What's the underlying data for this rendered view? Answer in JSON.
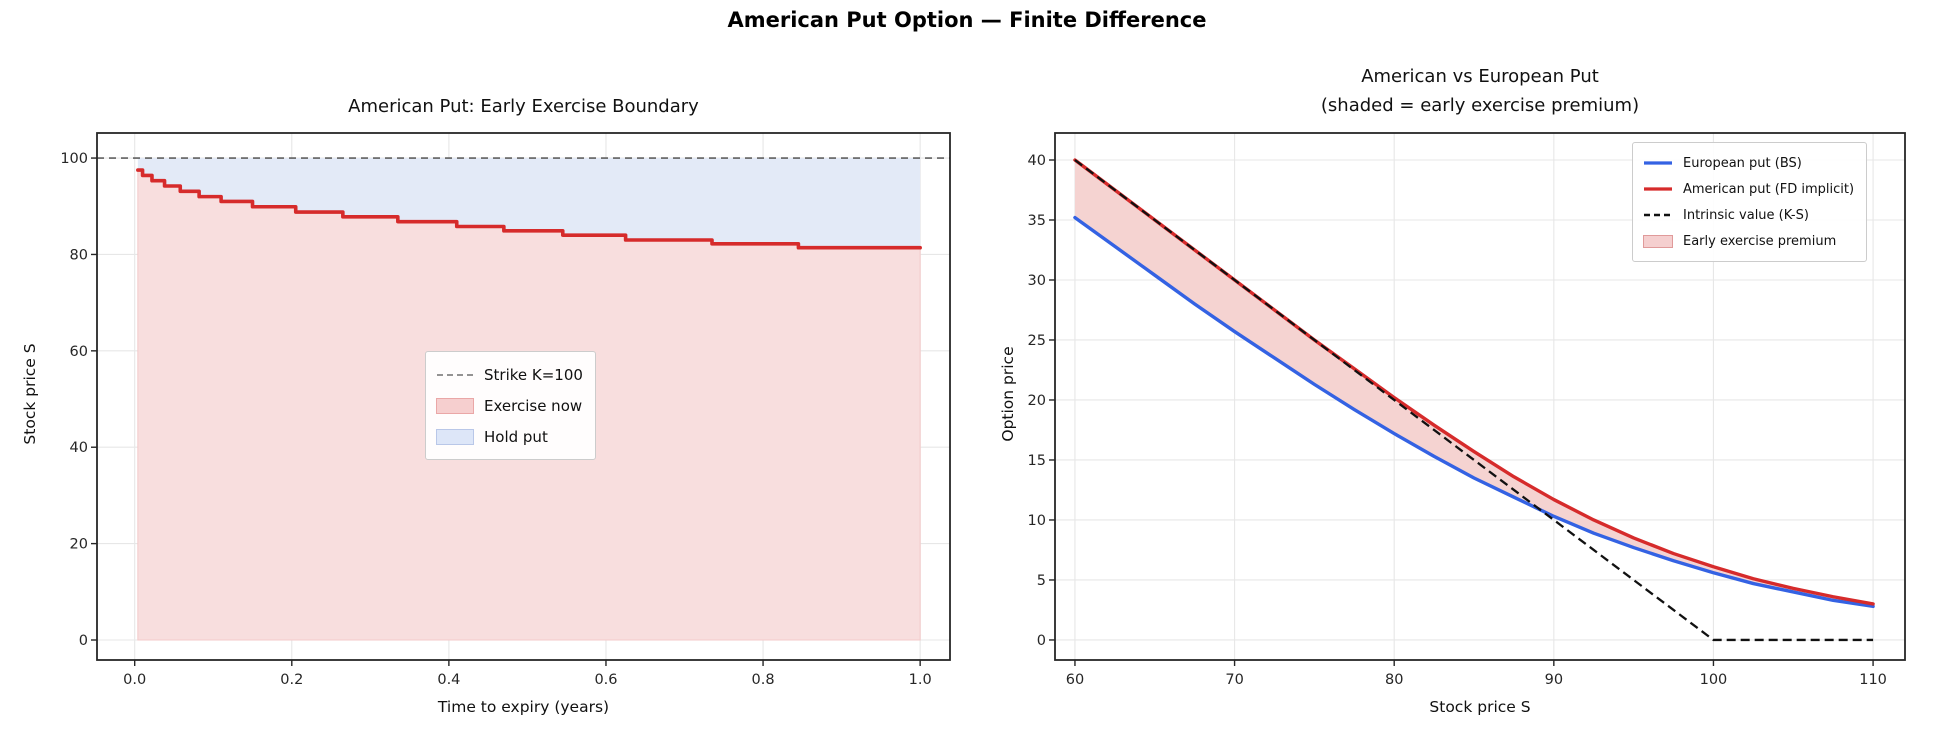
{
  "figure": {
    "suptitle": "American Put Option — Finite Difference"
  },
  "colors": {
    "red": "#d62b2b",
    "blue": "#3462e3",
    "dark": "#111111",
    "gray_dash": "#606060",
    "exercise_fill": "#f8dede",
    "hold_fill": "#e3eaf7",
    "premium_fill": "#f5d3d1",
    "grid": "#e7e7e7",
    "spine": "#262626",
    "tick_text": "#262626"
  },
  "chart_data": [
    {
      "type": "line",
      "title": "American Put: Early Exercise Boundary",
      "xlabel": "Time to expiry (years)",
      "ylabel": "Stock price S",
      "xlim": [
        -0.048,
        1.038
      ],
      "ylim": [
        -4.15,
        105.2
      ],
      "grid": true,
      "xticks": {
        "values": [
          0.0,
          0.2,
          0.4,
          0.6,
          0.8,
          1.0
        ],
        "labels": [
          "0.0",
          "0.2",
          "0.4",
          "0.6",
          "0.8",
          "1.0"
        ]
      },
      "yticks": {
        "values": [
          0,
          20,
          40,
          60,
          80,
          100
        ],
        "labels": [
          "0",
          "20",
          "40",
          "60",
          "80",
          "100"
        ]
      },
      "strike_level": 100,
      "boundary": {
        "t": [
          0.004,
          0.01,
          0.022,
          0.038,
          0.058,
          0.082,
          0.11,
          0.15,
          0.205,
          0.265,
          0.335,
          0.41,
          0.47,
          0.545,
          0.625,
          0.735,
          0.845,
          1.0
        ],
        "S": [
          97.5,
          96.4,
          95.3,
          94.2,
          93.1,
          92.0,
          91.0,
          89.9,
          88.8,
          87.8,
          86.8,
          85.8,
          84.9,
          84.0,
          83.0,
          82.2,
          81.4,
          81.4
        ]
      },
      "regions": {
        "exercise_below_boundary": "Exercise now",
        "hold_above_boundary": "Hold put"
      },
      "legend": {
        "position": "center",
        "items": [
          {
            "label": "Strike K=100",
            "swatch": "gray-dashed-line"
          },
          {
            "label": "Exercise now",
            "swatch": "pink-patch"
          },
          {
            "label": "Hold put",
            "swatch": "blue-patch"
          }
        ]
      }
    },
    {
      "type": "line",
      "title": "American vs European Put",
      "subtitle": "(shaded = early exercise premium)",
      "xlabel": "Stock price S",
      "ylabel": "Option price",
      "xlim": [
        58.75,
        112.0
      ],
      "ylim": [
        -1.67,
        42.25
      ],
      "grid": true,
      "xticks": {
        "values": [
          60,
          70,
          80,
          90,
          100,
          110
        ],
        "labels": [
          "60",
          "70",
          "80",
          "90",
          "100",
          "110"
        ]
      },
      "yticks": {
        "values": [
          0,
          5,
          10,
          15,
          20,
          25,
          30,
          35,
          40
        ],
        "labels": [
          "0",
          "5",
          "10",
          "15",
          "20",
          "25",
          "30",
          "35",
          "40"
        ]
      },
      "x": [
        60,
        62.5,
        65,
        67.5,
        70,
        72.5,
        75,
        77.5,
        80,
        82.5,
        85,
        87.5,
        90,
        92.5,
        95,
        97.5,
        100,
        102.5,
        105,
        107.5,
        110
      ],
      "series": [
        {
          "name": "European put (BS)",
          "style": "solid",
          "color_key": "blue",
          "values": [
            35.2,
            32.8,
            30.4,
            28.0,
            25.7,
            23.5,
            21.3,
            19.2,
            17.2,
            15.3,
            13.5,
            11.9,
            10.3,
            8.9,
            7.7,
            6.6,
            5.6,
            4.7,
            4.0,
            3.3,
            2.8
          ]
        },
        {
          "name": "American put (FD implicit)",
          "style": "solid",
          "color_key": "red",
          "values": [
            40.0,
            37.5,
            35.0,
            32.5,
            30.0,
            27.5,
            25.0,
            22.6,
            20.2,
            17.9,
            15.7,
            13.6,
            11.7,
            10.0,
            8.5,
            7.2,
            6.1,
            5.1,
            4.3,
            3.6,
            3.0
          ]
        },
        {
          "name": "Intrinsic value (K-S)",
          "style": "dashed",
          "color_key": "dark",
          "values": [
            40,
            37.5,
            35,
            32.5,
            30,
            27.5,
            25,
            22.5,
            20,
            17.5,
            15,
            12.5,
            10,
            7.5,
            5,
            2.5,
            0,
            0,
            0,
            0,
            0
          ]
        }
      ],
      "fill_between": {
        "name": "Early exercise premium",
        "upper": "American put (FD implicit)",
        "lower": "European put (BS)"
      },
      "legend": {
        "position": "upper right",
        "items": [
          {
            "label": "European put (BS)",
            "swatch": "blue-line"
          },
          {
            "label": "American put (FD implicit)",
            "swatch": "red-line"
          },
          {
            "label": "Intrinsic value (K-S)",
            "swatch": "black-dashed-line"
          },
          {
            "label": "Early exercise premium",
            "swatch": "pink-patch"
          }
        ]
      }
    }
  ]
}
